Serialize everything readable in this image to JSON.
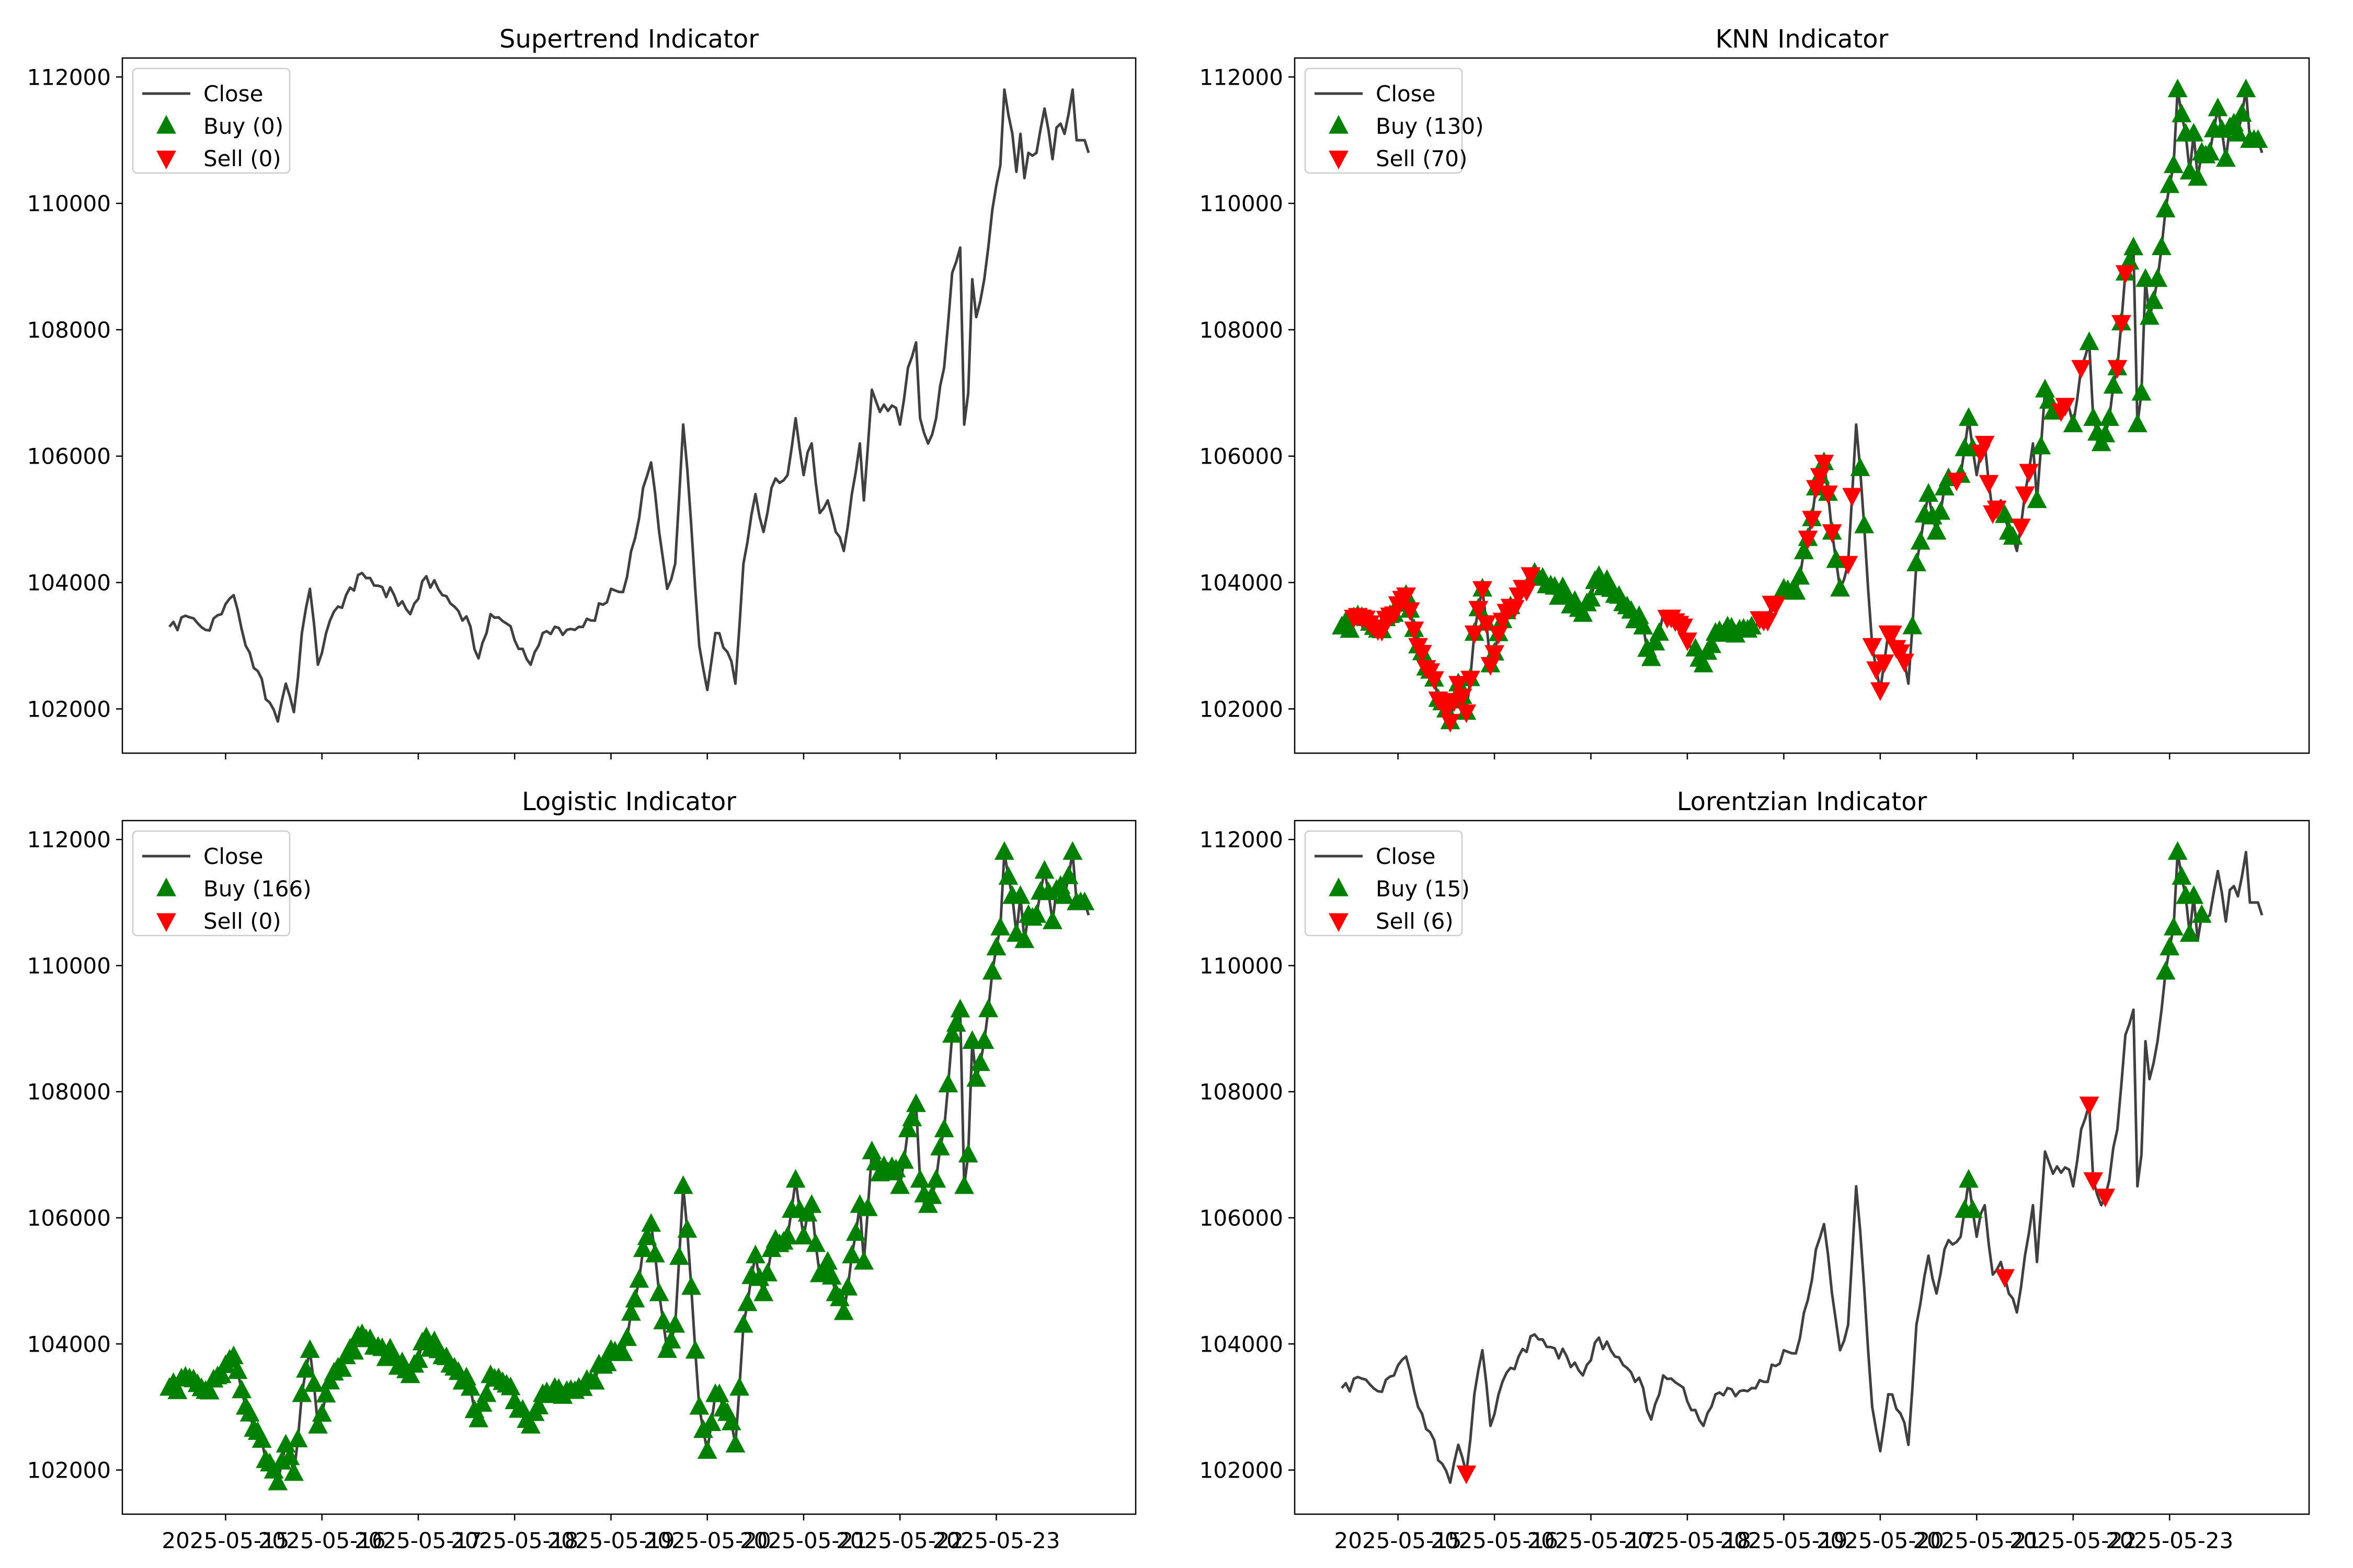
{
  "colors": {
    "close": "#404040",
    "buy": "#008000",
    "sell": "#ff0000",
    "axis": "#000000",
    "legend_border": "#cccccc"
  },
  "x_tick_labels": [
    "2025-05-15",
    "2025-05-16",
    "2025-05-17",
    "2025-05-18",
    "2025-05-19",
    "2025-05-20",
    "2025-05-21",
    "2025-05-22",
    "2025-05-23"
  ],
  "y_tick_labels": [
    "102000",
    "104000",
    "106000",
    "108000",
    "110000",
    "112000"
  ],
  "close_anchors": [
    [
      0,
      103300
    ],
    [
      5,
      103450
    ],
    [
      9,
      103250
    ],
    [
      13,
      103500
    ],
    [
      16,
      103800
    ],
    [
      19,
      103000
    ],
    [
      22,
      102600
    ],
    [
      25,
      102100
    ],
    [
      27,
      101800
    ],
    [
      29,
      102400
    ],
    [
      31,
      101950
    ],
    [
      33,
      103200
    ],
    [
      35,
      103900
    ],
    [
      37,
      102700
    ],
    [
      40,
      103400
    ],
    [
      44,
      103800
    ],
    [
      48,
      104150
    ],
    [
      52,
      103950
    ],
    [
      56,
      103800
    ],
    [
      60,
      103500
    ],
    [
      64,
      104100
    ],
    [
      68,
      103800
    ],
    [
      72,
      103550
    ],
    [
      75,
      103300
    ],
    [
      77,
      102800
    ],
    [
      80,
      103500
    ],
    [
      84,
      103350
    ],
    [
      87,
      102950
    ],
    [
      90,
      102700
    ],
    [
      93,
      103200
    ],
    [
      96,
      103300
    ],
    [
      99,
      103250
    ],
    [
      102,
      103300
    ],
    [
      105,
      103400
    ],
    [
      108,
      103650
    ],
    [
      110,
      103900
    ],
    [
      113,
      103850
    ],
    [
      116,
      104700
    ],
    [
      118,
      105500
    ],
    [
      120,
      105900
    ],
    [
      122,
      104800
    ],
    [
      124,
      103900
    ],
    [
      126,
      104300
    ],
    [
      128,
      106500
    ],
    [
      130,
      104900
    ],
    [
      132,
      103000
    ],
    [
      134,
      102300
    ],
    [
      136,
      103200
    ],
    [
      139,
      102900
    ],
    [
      141,
      102400
    ],
    [
      143,
      104300
    ],
    [
      146,
      105400
    ],
    [
      148,
      104800
    ],
    [
      150,
      105500
    ],
    [
      154,
      105700
    ],
    [
      156,
      106600
    ],
    [
      158,
      105700
    ],
    [
      160,
      106200
    ],
    [
      162,
      105100
    ],
    [
      164,
      105300
    ],
    [
      166,
      104800
    ],
    [
      168,
      104500
    ],
    [
      170,
      105400
    ],
    [
      172,
      106200
    ],
    [
      173,
      105300
    ],
    [
      175,
      107050
    ],
    [
      177,
      106700
    ],
    [
      180,
      106800
    ],
    [
      182,
      106500
    ],
    [
      184,
      107400
    ],
    [
      186,
      107800
    ],
    [
      187,
      106600
    ],
    [
      189,
      106200
    ],
    [
      191,
      106600
    ],
    [
      193,
      107400
    ],
    [
      195,
      108900
    ],
    [
      197,
      109300
    ],
    [
      198,
      106500
    ],
    [
      199,
      107000
    ],
    [
      200,
      108800
    ],
    [
      201,
      108200
    ],
    [
      203,
      108800
    ],
    [
      205,
      109900
    ],
    [
      207,
      110600
    ],
    [
      208,
      111800
    ],
    [
      210,
      111100
    ],
    [
      211,
      110500
    ],
    [
      212,
      111100
    ],
    [
      213,
      110400
    ],
    [
      214,
      110800
    ],
    [
      216,
      110800
    ],
    [
      218,
      111500
    ],
    [
      220,
      110700
    ],
    [
      221,
      111200
    ],
    [
      223,
      111100
    ],
    [
      225,
      111800
    ],
    [
      226,
      111000
    ],
    [
      228,
      111000
    ],
    [
      229,
      110800
    ]
  ],
  "panels": [
    {
      "title": "Supertrend Indicator",
      "legend": {
        "close": "Close",
        "buy": "Buy (0)",
        "sell": "Sell (0)"
      },
      "buy": [],
      "sell": []
    },
    {
      "title": "KNN Indicator",
      "legend": {
        "close": "Close",
        "buy": "Buy (130)",
        "sell": "Sell (70)"
      },
      "buy": [
        [
          0,
          43
        ],
        [
          48,
          80
        ],
        [
          88,
          103
        ],
        [
          110,
          125
        ],
        [
          129,
          131
        ],
        [
          142,
          152
        ],
        [
          154,
          158
        ],
        [
          165,
          168
        ],
        [
          173,
          178
        ],
        [
          182,
          183
        ],
        [
          186,
          229
        ]
      ],
      "sell": [
        [
          3,
          47
        ],
        [
          47,
          48
        ],
        [
          81,
          87
        ],
        [
          104,
          109
        ],
        [
          116,
          123
        ],
        [
          126,
          128
        ],
        [
          132,
          141
        ],
        [
          153,
          154
        ],
        [
          159,
          164
        ],
        [
          169,
          172
        ],
        [
          179,
          181
        ],
        [
          184,
          185
        ],
        [
          193,
          196
        ]
      ]
    },
    {
      "title": "Logistic Indicator",
      "legend": {
        "close": "Close",
        "buy": "Buy (166)",
        "sell": "Sell (0)"
      },
      "buy": [
        [
          0,
          229
        ]
      ],
      "sell": []
    },
    {
      "title": "Lorentzian Indicator",
      "legend": {
        "close": "Close",
        "buy": "Buy (15)",
        "sell": "Sell (6)"
      },
      "buy": [
        [
          155,
          158
        ],
        [
          205,
          213
        ],
        [
          214,
          215
        ]
      ],
      "sell": [
        [
          31,
          32
        ],
        [
          165,
          166
        ],
        [
          186,
          188
        ],
        [
          190,
          191
        ]
      ]
    }
  ],
  "chart_data": [
    {
      "type": "line",
      "title": "Supertrend Indicator",
      "x_range": [
        "2025-05-14 17:00",
        "2025-05-22 23:00"
      ],
      "x_ticks": [
        "2025-05-15",
        "2025-05-16",
        "2025-05-17",
        "2025-05-18",
        "2025-05-19",
        "2025-05-20",
        "2025-05-21",
        "2025-05-22",
        "2025-05-23"
      ],
      "ylim": [
        101300,
        112300
      ],
      "series": [
        {
          "name": "Close",
          "values_approx": [
            103300,
            103450,
            103250,
            103500,
            103800,
            103000,
            102600,
            101800,
            102400,
            101950,
            103900,
            102700,
            104150,
            103500,
            104100,
            102800,
            103500,
            102700,
            103650,
            103900,
            105900,
            103900,
            106500,
            102300,
            103200,
            102400,
            105400,
            105700,
            106600,
            104500,
            106200,
            107050,
            106500,
            107800,
            106200,
            109300,
            106500,
            108800,
            111800,
            110400,
            111500,
            111800,
            110800
          ]
        },
        {
          "name": "Buy (0)",
          "values": []
        },
        {
          "name": "Sell (0)",
          "values": []
        }
      ],
      "legend": "top-left"
    },
    {
      "type": "line",
      "title": "KNN Indicator",
      "x_range": [
        "2025-05-14 17:00",
        "2025-05-22 23:00"
      ],
      "ylim": [
        101300,
        112300
      ],
      "series": [
        {
          "name": "Close"
        },
        {
          "name": "Buy (130)",
          "count": 130
        },
        {
          "name": "Sell (70)",
          "count": 70
        }
      ],
      "legend": "top-left"
    },
    {
      "type": "line",
      "title": "Logistic Indicator",
      "x_range": [
        "2025-05-14 17:00",
        "2025-05-22 23:00"
      ],
      "ylim": [
        101300,
        112300
      ],
      "series": [
        {
          "name": "Close"
        },
        {
          "name": "Buy (166)",
          "count": 166
        },
        {
          "name": "Sell (0)",
          "count": 0
        }
      ],
      "legend": "top-left"
    },
    {
      "type": "line",
      "title": "Lorentzian Indicator",
      "x_range": [
        "2025-05-14 17:00",
        "2025-05-22 23:00"
      ],
      "ylim": [
        101300,
        112300
      ],
      "series": [
        {
          "name": "Close"
        },
        {
          "name": "Buy (15)",
          "count": 15
        },
        {
          "name": "Sell (6)",
          "count": 6
        }
      ],
      "legend": "top-left"
    }
  ]
}
